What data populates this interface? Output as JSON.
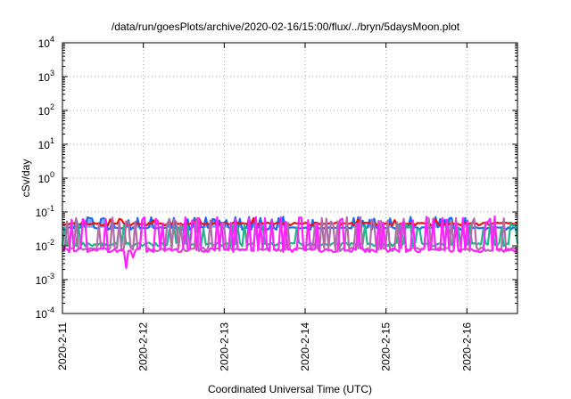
{
  "chart_data": {
    "type": "line",
    "title": "/data/run/goesPlots/archive/2020-02-16/15:00/flux/../bryn/5daysMoon.plot",
    "xlabel": "Coordinated Universal Time (UTC)",
    "ylabel": "cSv/day",
    "y_scale": "log",
    "ylim": [
      0.0001,
      10000
    ],
    "y_ticks": [
      {
        "value": 0.0001,
        "base": "10",
        "exp": "-4"
      },
      {
        "value": 0.001,
        "base": "10",
        "exp": "-3"
      },
      {
        "value": 0.01,
        "base": "10",
        "exp": "-2"
      },
      {
        "value": 0.1,
        "base": "10",
        "exp": "-1"
      },
      {
        "value": 1,
        "base": "10",
        "exp": "0"
      },
      {
        "value": 10,
        "base": "10",
        "exp": "1"
      },
      {
        "value": 100,
        "base": "10",
        "exp": "2"
      },
      {
        "value": 1000,
        "base": "10",
        "exp": "3"
      },
      {
        "value": 10000,
        "base": "10",
        "exp": "4"
      }
    ],
    "xlim": [
      "2020-02-11T00:00",
      "2020-02-16T15:00"
    ],
    "x_ticks": [
      {
        "value": "2020-02-11T00:00",
        "label": "2020-2-11"
      },
      {
        "value": "2020-02-12T00:00",
        "label": "2020-2-12"
      },
      {
        "value": "2020-02-13T00:00",
        "label": "2020-2-13"
      },
      {
        "value": "2020-02-14T00:00",
        "label": "2020-2-14"
      },
      {
        "value": "2020-02-15T00:00",
        "label": "2020-2-15"
      },
      {
        "value": "2020-02-16T00:00",
        "label": "2020-2-16"
      }
    ],
    "grid": true,
    "legend": "none",
    "series": [
      {
        "color": "#ee1111",
        "base": 0.046,
        "floor": 0.04,
        "spike_prob": 0.09,
        "spike_max": 0.065,
        "noise": 0.06,
        "seed": 11
      },
      {
        "color": "#1e6bf0",
        "base": 0.034,
        "floor": 0.03,
        "spike_prob": 0.16,
        "spike_max": 0.072,
        "noise": 0.04,
        "fill": true,
        "seed": 23
      },
      {
        "color": "#22b58a",
        "base": 0.0115,
        "floor": 0.0098,
        "spike_prob": 0.2,
        "spike_max": 0.045,
        "noise": 0.08,
        "seed": 37
      },
      {
        "color": "#b06ea8",
        "base": 0.0082,
        "floor": 0.007,
        "spike_prob": 0.24,
        "spike_max": 0.07,
        "noise": 0.08,
        "seed": 41
      },
      {
        "color": "#ff22ff",
        "base": 0.0077,
        "floor": 0.0066,
        "spike_prob": 0.26,
        "spike_max": 0.075,
        "noise": 0.09,
        "dips": [
          {
            "x": "2020-02-11T18:45",
            "y": 0.0022
          },
          {
            "x": "2020-02-11T21:00",
            "y": 0.0045
          }
        ],
        "seed": 59
      }
    ]
  }
}
